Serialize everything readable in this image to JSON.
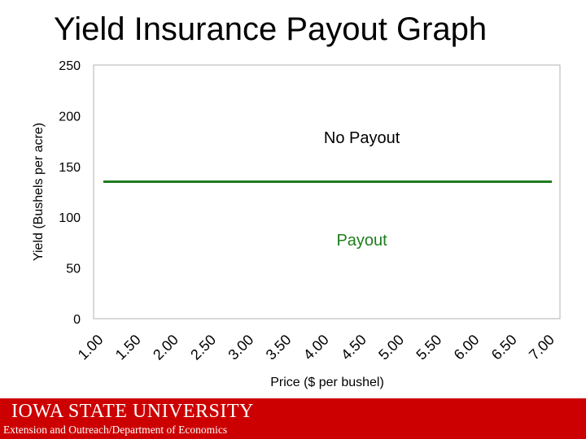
{
  "slide": {
    "title": "Yield Insurance Payout Graph",
    "footer_university": "IOWA STATE UNIVERSITY",
    "footer_sub": "Extension and Outreach/Department of Economics",
    "brand_color": "#cc0000"
  },
  "chart_data": {
    "type": "line",
    "title": "",
    "xlabel": "Price ($ per bushel)",
    "ylabel": "Yield (Bushels per acre)",
    "categories": [
      "1.00",
      "1.50",
      "2.00",
      "2.50",
      "3.00",
      "3.50",
      "4.00",
      "4.50",
      "5.00",
      "5.50",
      "6.00",
      "6.50",
      "7.00"
    ],
    "series": [
      {
        "values": [
          135,
          135,
          135,
          135,
          135,
          135,
          135,
          135,
          135,
          135,
          135,
          135,
          135
        ],
        "color": "#1e7d1e"
      }
    ],
    "ylim": [
      0,
      250
    ],
    "yticks": [
      0,
      50,
      100,
      150,
      200,
      250
    ],
    "grid": false,
    "annotations": [
      {
        "text": "No Payout",
        "x": "5.00",
        "y": 178,
        "color": "#000000"
      },
      {
        "text": "Payout",
        "x": "5.00",
        "y": 77,
        "color": "#1e7d1e"
      }
    ]
  }
}
